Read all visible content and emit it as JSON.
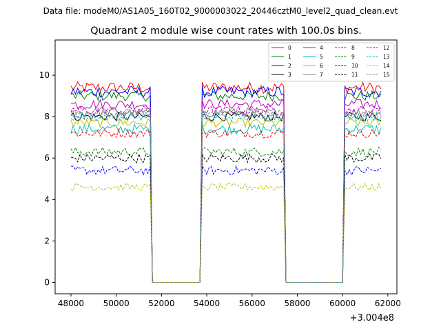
{
  "suptitle": "Data file: modeM0/AS1A05_160T02_9000003022_20446cztM0_level2_quad_clean.evt",
  "chart_data": {
    "type": "line",
    "title": "Quadrant 2 module wise count rates with 100.0s bins.",
    "xlabel": "",
    "ylabel": "",
    "xlim": [
      47300,
      62400
    ],
    "ylim": [
      -0.55,
      11.7
    ],
    "x_offset_label": "+3.004e8",
    "xticks": [
      48000,
      50000,
      52000,
      54000,
      56000,
      58000,
      60000,
      62000
    ],
    "xtick_labels": [
      "48000",
      "50000",
      "52000",
      "54000",
      "56000",
      "58000",
      "60000",
      "62000"
    ],
    "yticks": [
      0,
      2,
      4,
      6,
      8,
      10
    ],
    "ytick_labels": [
      "0",
      "2",
      "4",
      "6",
      "8",
      "10"
    ],
    "grid": false,
    "legend_position": "top-right",
    "segments": [
      {
        "x_start": 48000,
        "x_end": 51500
      },
      {
        "x_start": 53800,
        "x_end": 57400
      },
      {
        "x_start": 60100,
        "x_end": 61700
      }
    ],
    "gap_level": 0,
    "series": [
      {
        "name": "0",
        "color": "#ff0000",
        "style": "solid",
        "level": 9.4,
        "noise": 0.28
      },
      {
        "name": "1",
        "color": "#008000",
        "style": "solid",
        "level": 9.0,
        "noise": 0.25
      },
      {
        "name": "2",
        "color": "#0000ff",
        "style": "solid",
        "level": 9.2,
        "noise": 0.28
      },
      {
        "name": "3",
        "color": "#000000",
        "style": "solid",
        "level": 8.0,
        "noise": 0.22
      },
      {
        "name": "4",
        "color": "#bf00bf",
        "style": "solid",
        "level": 8.6,
        "noise": 0.25
      },
      {
        "name": "5",
        "color": "#00bfbf",
        "style": "solid",
        "level": 7.4,
        "noise": 0.25
      },
      {
        "name": "6",
        "color": "#bfbf00",
        "style": "solid",
        "level": 7.7,
        "noise": 0.22
      },
      {
        "name": "7",
        "color": "#808080",
        "style": "solid",
        "level": 8.2,
        "noise": 0.22
      },
      {
        "name": "8",
        "color": "#ff0000",
        "style": "dashed",
        "level": 7.2,
        "noise": 0.22
      },
      {
        "name": "9",
        "color": "#008000",
        "style": "dashed",
        "level": 6.3,
        "noise": 0.22
      },
      {
        "name": "10",
        "color": "#0000ff",
        "style": "dashed",
        "level": 5.4,
        "noise": 0.22
      },
      {
        "name": "11",
        "color": "#000000",
        "style": "dashed",
        "level": 6.0,
        "noise": 0.22
      },
      {
        "name": "12",
        "color": "#bf00bf",
        "style": "dashed",
        "level": 8.3,
        "noise": 0.22
      },
      {
        "name": "13",
        "color": "#00bfbf",
        "style": "dashed",
        "level": 8.0,
        "noise": 0.22
      },
      {
        "name": "14",
        "color": "#bfbf00",
        "style": "dashed",
        "level": 4.6,
        "noise": 0.18
      },
      {
        "name": "15",
        "color": "#808080",
        "style": "dashed",
        "level": 8.1,
        "noise": 0.22
      }
    ]
  }
}
